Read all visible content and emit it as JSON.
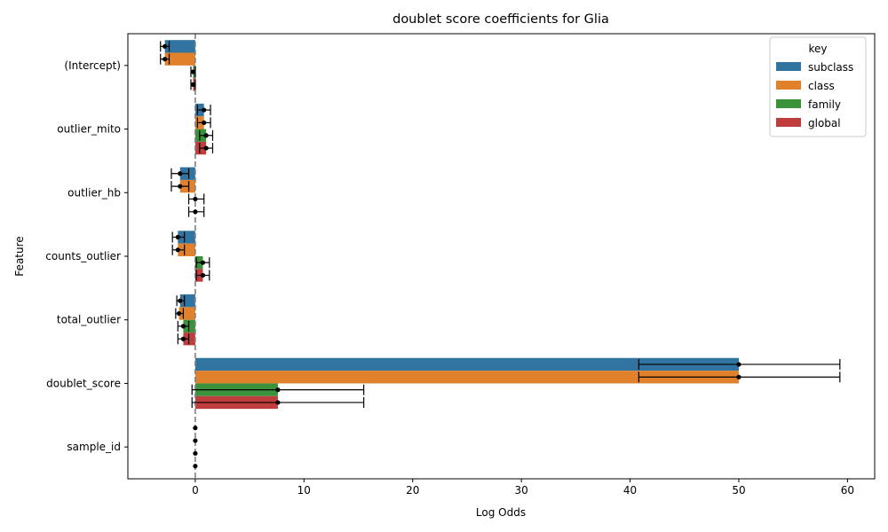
{
  "chart_data": {
    "type": "bar",
    "orientation": "horizontal",
    "title": "doublet score coefficients for Glia",
    "xlabel": "Log Odds",
    "ylabel": "Feature",
    "xlim": [
      -6.2,
      62.5
    ],
    "xticks": [
      0,
      10,
      20,
      30,
      40,
      50,
      60
    ],
    "categories": [
      "(Intercept)",
      "outlier_mito",
      "outlier_hb",
      "counts_outlier",
      "total_outlier",
      "doublet_score",
      "sample_id"
    ],
    "reference_line": {
      "x": 0,
      "style": "dashed",
      "color": "#808080"
    },
    "grid": false,
    "legend": {
      "title": "key",
      "placement": "top-right"
    },
    "series": [
      {
        "name": "subclass",
        "color": "#3274a1",
        "values": [
          -2.8,
          0.8,
          -1.4,
          -1.6,
          -1.4,
          50.0,
          0.0
        ],
        "err_low": [
          -3.2,
          0.2,
          -2.2,
          -2.1,
          -1.7,
          40.8,
          0.0
        ],
        "err_high": [
          -2.4,
          1.4,
          -0.6,
          -1.0,
          -1.0,
          59.3,
          0.0
        ]
      },
      {
        "name": "class",
        "color": "#e1812c",
        "values": [
          -2.8,
          0.8,
          -1.4,
          -1.6,
          -1.5,
          50.0,
          0.0
        ],
        "err_low": [
          -3.2,
          0.2,
          -2.2,
          -2.1,
          -1.8,
          40.8,
          0.0
        ],
        "err_high": [
          -2.4,
          1.4,
          -0.6,
          -1.0,
          -1.1,
          59.3,
          0.0
        ]
      },
      {
        "name": "family",
        "color": "#3a923a",
        "values": [
          -0.2,
          1.0,
          0.0,
          0.7,
          -1.1,
          7.6,
          0.0
        ],
        "err_low": [
          -0.4,
          0.4,
          -0.6,
          0.1,
          -1.6,
          -0.3,
          0.0
        ],
        "err_high": [
          0.0,
          1.6,
          0.8,
          1.3,
          -0.6,
          15.5,
          0.0
        ]
      },
      {
        "name": "global",
        "color": "#c03d3e",
        "values": [
          -0.2,
          1.0,
          0.0,
          0.7,
          -1.1,
          7.6,
          0.0
        ],
        "err_low": [
          -0.4,
          0.4,
          -0.6,
          0.1,
          -1.6,
          -0.3,
          0.0
        ],
        "err_high": [
          0.0,
          1.6,
          0.8,
          1.3,
          -0.6,
          15.5,
          0.0
        ]
      }
    ]
  }
}
